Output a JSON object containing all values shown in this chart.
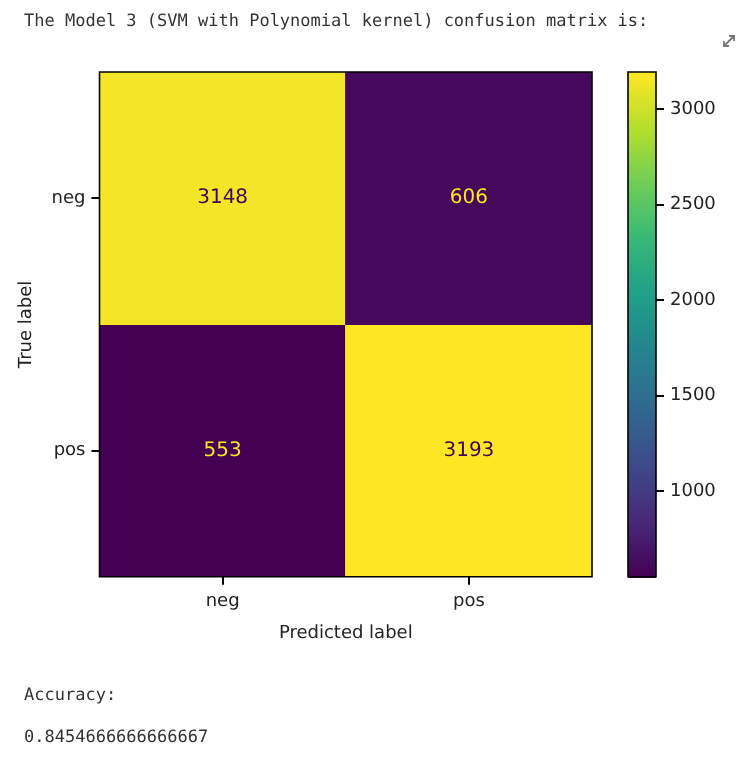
{
  "chart_data": {
    "type": "heatmap",
    "title": "The Model 3 (SVM with Polynomial kernel) confusion matrix is:",
    "xlabel": "Predicted label",
    "ylabel": "True label",
    "categories": [
      "neg",
      "pos"
    ],
    "y_categories": [
      "neg",
      "pos"
    ],
    "cells": [
      [
        3148,
        606
      ],
      [
        553,
        3193
      ]
    ],
    "clim": [
      553,
      3193
    ],
    "cticks": [
      1000,
      1500,
      2000,
      2500,
      3000
    ],
    "data_labels": true,
    "annotations": [
      "Accuracy:",
      "0.8454666666666667"
    ]
  }
}
